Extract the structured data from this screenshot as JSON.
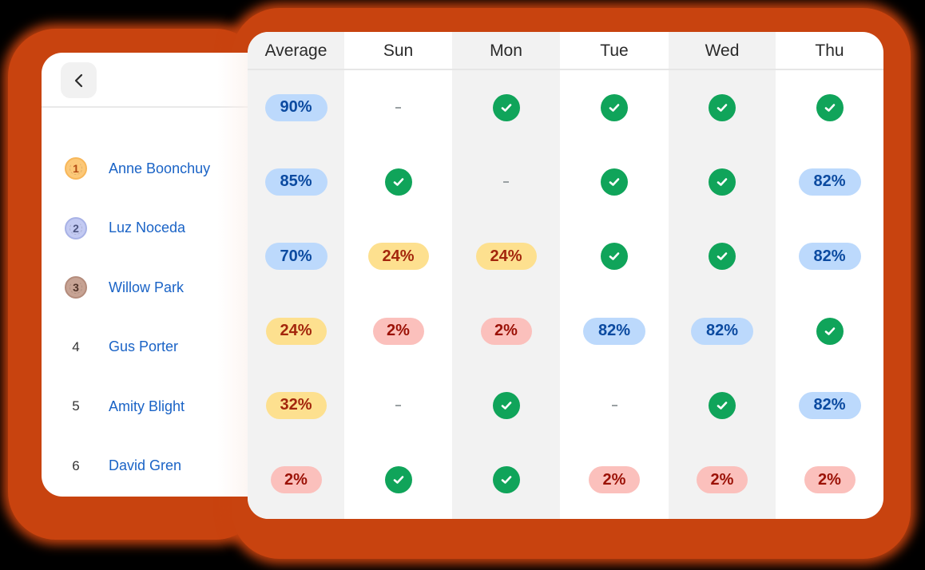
{
  "colors": {
    "glow": "#c8430f",
    "link": "#1a63c6",
    "check": "#10a45a",
    "pill_blue_bg": "#bcd9fc",
    "pill_blue_text": "#0b4aa0",
    "pill_yellow_bg": "#fde08f",
    "pill_yellow_text": "#a3260c",
    "pill_red_bg": "#fbc0bc",
    "pill_red_text": "#9b1106"
  },
  "left_panel": {
    "back_button_icon": "chevron-left-icon",
    "students": [
      {
        "rank": "1",
        "medal": "gold",
        "name": "Anne Boonchuy"
      },
      {
        "rank": "2",
        "medal": "silver",
        "name": "Luz Noceda"
      },
      {
        "rank": "3",
        "medal": "bronze",
        "name": "Willow Park"
      },
      {
        "rank": "4",
        "medal": null,
        "name": "Gus Porter"
      },
      {
        "rank": "5",
        "medal": null,
        "name": "Amity Blight"
      },
      {
        "rank": "6",
        "medal": null,
        "name": "David Gren"
      }
    ]
  },
  "table": {
    "columns": [
      "Average",
      "Sun",
      "Mon",
      "Tue",
      "Wed",
      "Thu"
    ],
    "rows": [
      [
        {
          "type": "pill",
          "tone": "blue",
          "value": "90%"
        },
        {
          "type": "dash",
          "value": "-"
        },
        {
          "type": "check"
        },
        {
          "type": "check"
        },
        {
          "type": "check"
        },
        {
          "type": "check"
        }
      ],
      [
        {
          "type": "pill",
          "tone": "blue",
          "value": "85%"
        },
        {
          "type": "check"
        },
        {
          "type": "dash",
          "value": "-"
        },
        {
          "type": "check"
        },
        {
          "type": "check"
        },
        {
          "type": "pill",
          "tone": "blue",
          "value": "82%"
        }
      ],
      [
        {
          "type": "pill",
          "tone": "blue",
          "value": "70%"
        },
        {
          "type": "pill",
          "tone": "yellow",
          "value": "24%"
        },
        {
          "type": "pill",
          "tone": "yellow",
          "value": "24%"
        },
        {
          "type": "check"
        },
        {
          "type": "check"
        },
        {
          "type": "pill",
          "tone": "blue",
          "value": "82%"
        }
      ],
      [
        {
          "type": "pill",
          "tone": "yellow",
          "value": "24%"
        },
        {
          "type": "pill",
          "tone": "red",
          "value": "2%"
        },
        {
          "type": "pill",
          "tone": "red",
          "value": "2%"
        },
        {
          "type": "pill",
          "tone": "blue",
          "value": "82%"
        },
        {
          "type": "pill",
          "tone": "blue",
          "value": "82%"
        },
        {
          "type": "check"
        }
      ],
      [
        {
          "type": "pill",
          "tone": "yellow",
          "value": "32%"
        },
        {
          "type": "dash",
          "value": "-"
        },
        {
          "type": "check"
        },
        {
          "type": "dash",
          "value": "-"
        },
        {
          "type": "check"
        },
        {
          "type": "pill",
          "tone": "blue",
          "value": "82%"
        }
      ],
      [
        {
          "type": "pill",
          "tone": "red",
          "value": "2%"
        },
        {
          "type": "check"
        },
        {
          "type": "check"
        },
        {
          "type": "pill",
          "tone": "red",
          "value": "2%"
        },
        {
          "type": "pill",
          "tone": "red",
          "value": "2%"
        },
        {
          "type": "pill",
          "tone": "red",
          "value": "2%"
        }
      ]
    ]
  }
}
